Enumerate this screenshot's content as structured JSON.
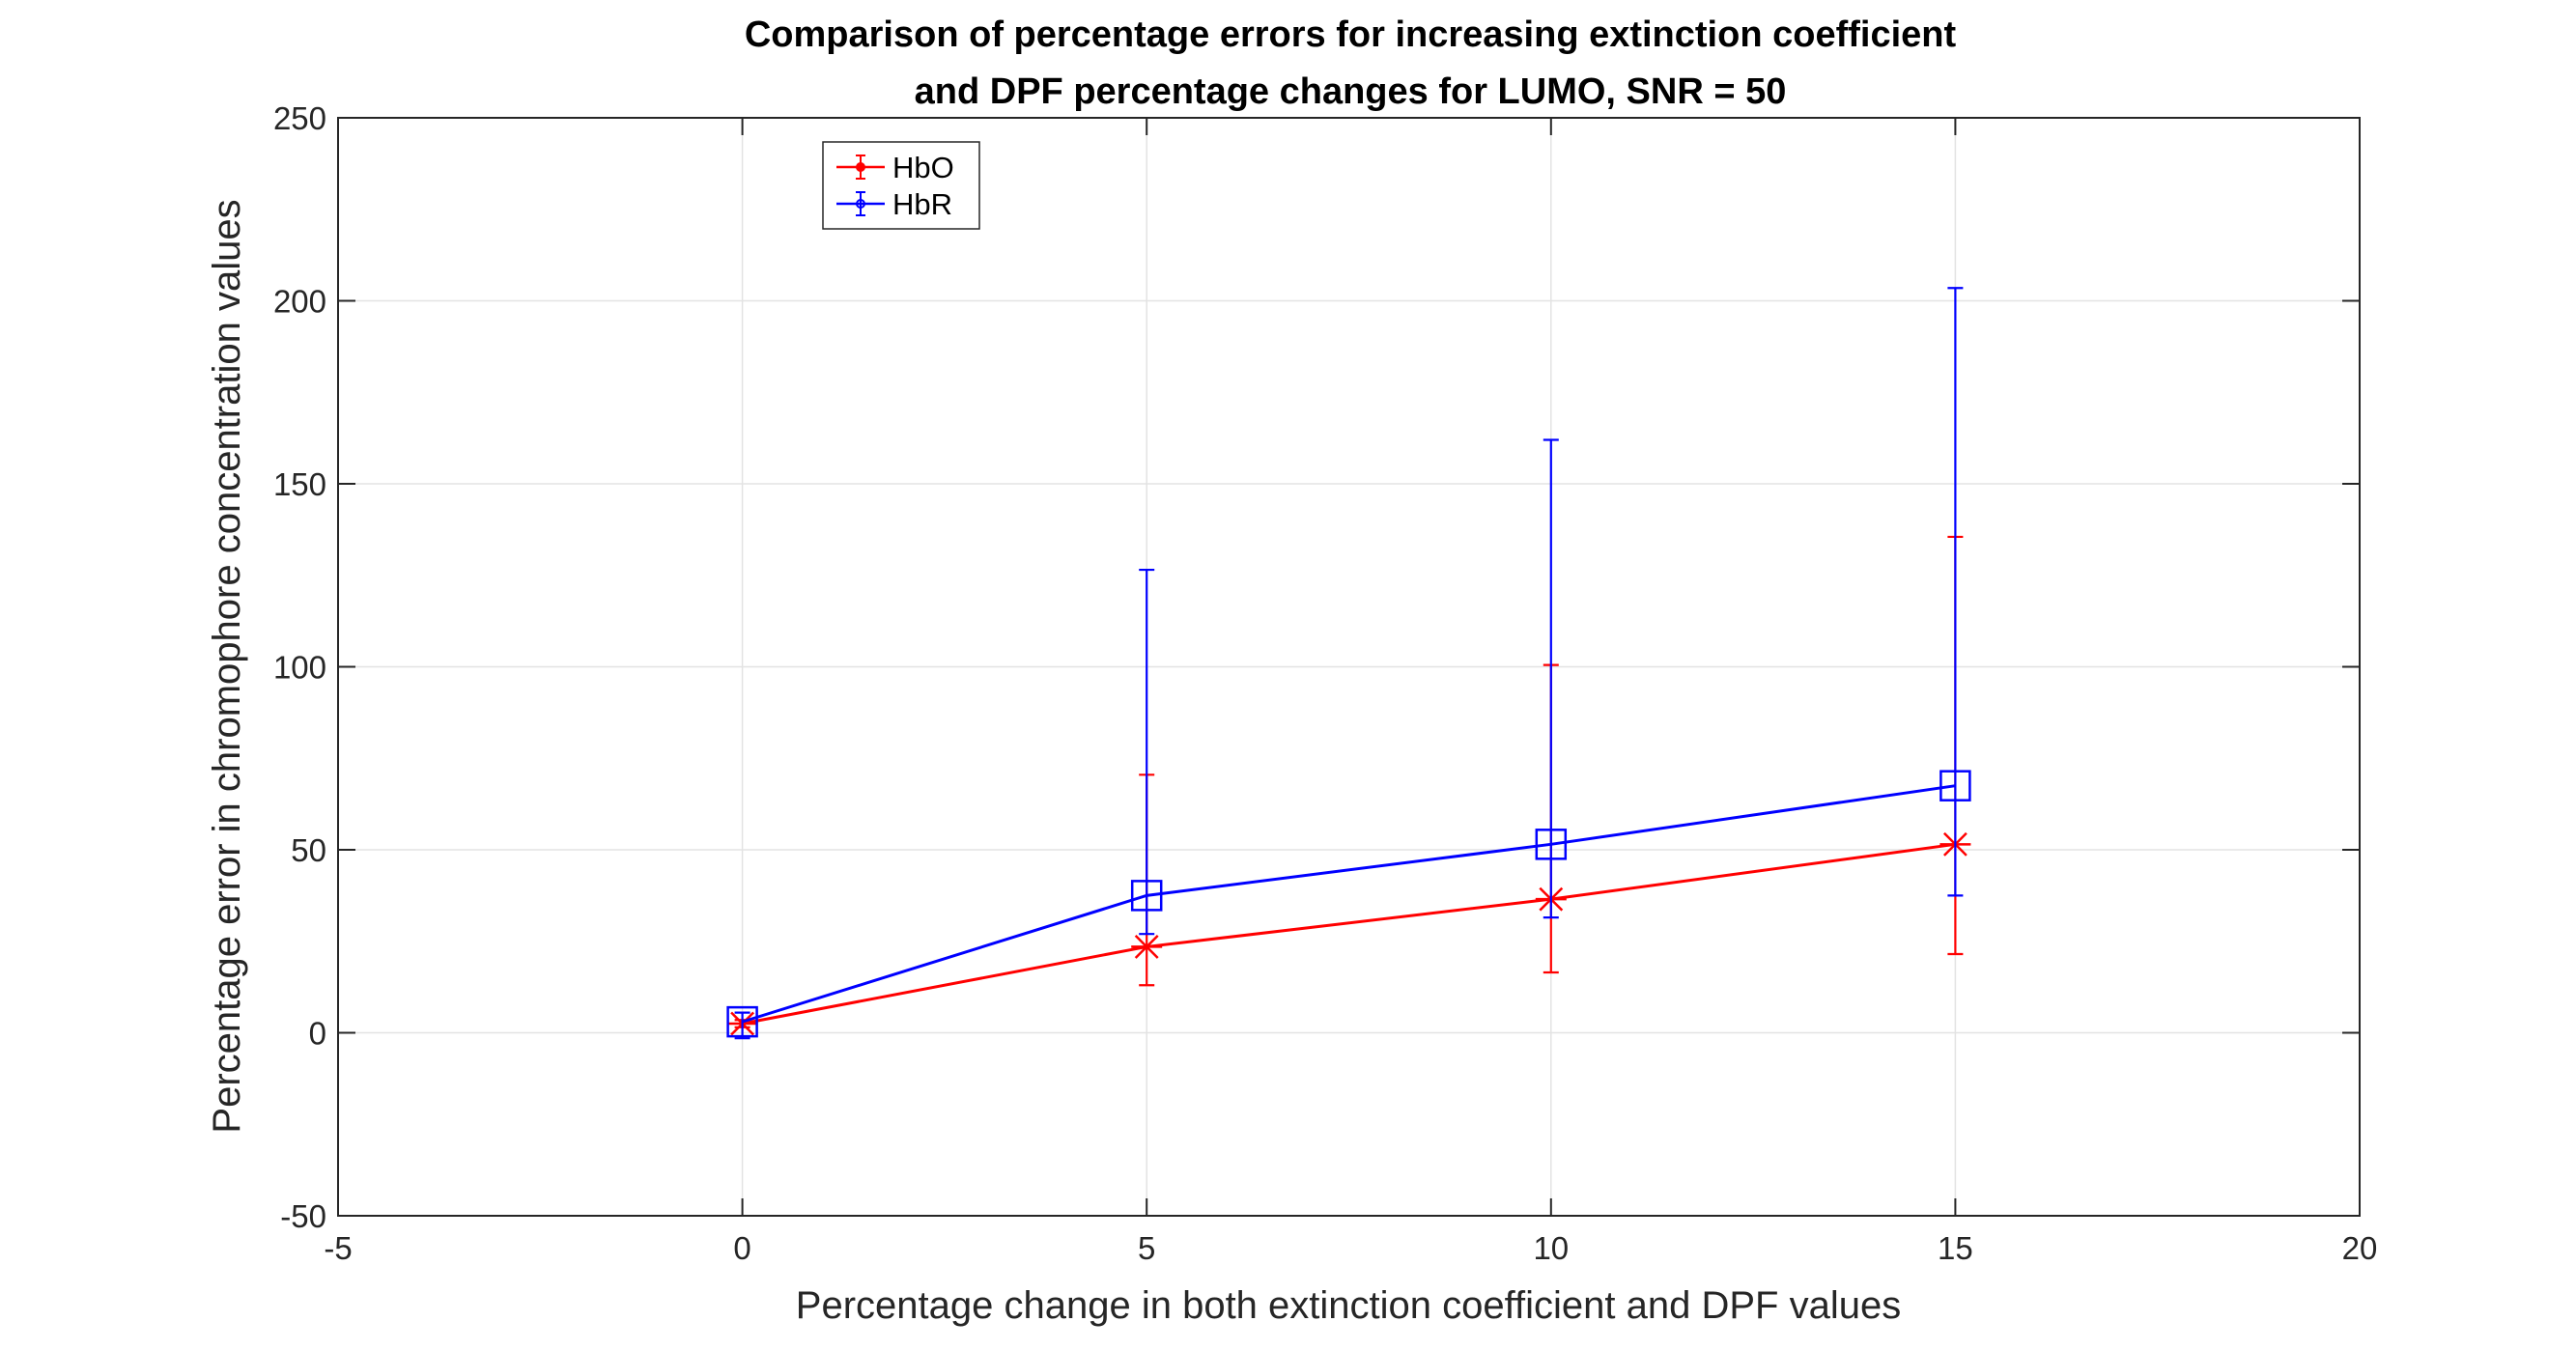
{
  "chart_data": {
    "type": "line",
    "title_lines": [
      "Comparison of percentage errors for increasing extinction coefficient",
      "and DPF percentage changes for LUMO, SNR = 50"
    ],
    "xlabel": "Percentage change in both extinction coefficient and DPF values",
    "ylabel": "Percentage error in chromophore concentration values",
    "xlim": [
      -5,
      20
    ],
    "ylim": [
      -50,
      250
    ],
    "xticks": [
      -5,
      0,
      5,
      10,
      15,
      20
    ],
    "yticks": [
      -50,
      0,
      50,
      100,
      150,
      200,
      250
    ],
    "grid": true,
    "legend_position": "top-left",
    "x": [
      0,
      5,
      10,
      15
    ],
    "series": [
      {
        "name": "HbO",
        "color": "#ff0000",
        "marker": "asterisk",
        "values": [
          2.5,
          23.5,
          36.5,
          51.5
        ],
        "err_lower": [
          1.5,
          13,
          16.5,
          21.5
        ],
        "err_upper": [
          3.5,
          70.5,
          100.5,
          135.5
        ]
      },
      {
        "name": "HbR",
        "color": "#0000ff",
        "marker": "square",
        "values": [
          3,
          37.5,
          51.5,
          67.5
        ],
        "err_lower": [
          -1.5,
          27,
          31.5,
          37.5
        ],
        "err_upper": [
          5.5,
          126.5,
          162,
          203.5
        ]
      }
    ]
  }
}
